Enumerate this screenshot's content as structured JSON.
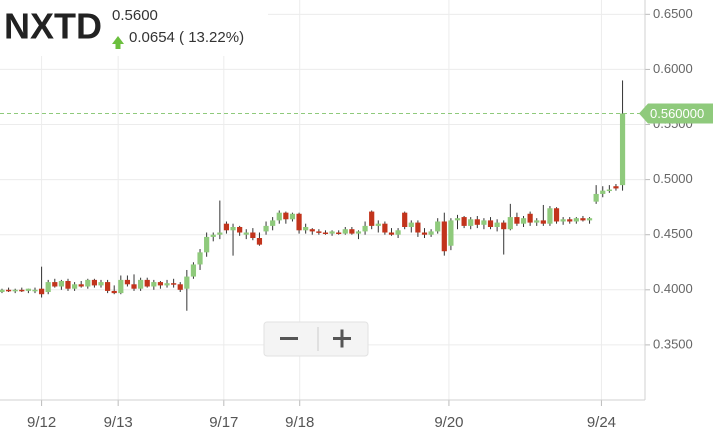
{
  "chart_data": {
    "type": "candlestick",
    "header": {
      "ticker": "NXTD",
      "price": "0.5600",
      "change": "0.0654 ( 13.22%)"
    },
    "last_price": {
      "value": 0.56,
      "label": "0.560000"
    },
    "up_color": "#8fca7c",
    "down_color": "#c2341c",
    "xlim": [
      -0.3,
      97.4
    ],
    "ylim": [
      0.3,
      0.663
    ],
    "xticks": [
      {
        "value": 6,
        "label": "9/12"
      },
      {
        "value": 17.6,
        "label": "9/13"
      },
      {
        "value": 33.6,
        "label": "9/17"
      },
      {
        "value": 45.1,
        "label": "9/18"
      },
      {
        "value": 67.7,
        "label": "9/20"
      },
      {
        "value": 90.8,
        "label": "9/24"
      }
    ],
    "yticks": [
      {
        "value": 0.35,
        "label": "0.3500"
      },
      {
        "value": 0.4,
        "label": "0.4000"
      },
      {
        "value": 0.45,
        "label": "0.4500"
      },
      {
        "value": 0.5,
        "label": "0.5000"
      },
      {
        "value": 0.55,
        "label": "0.5500"
      },
      {
        "value": 0.6,
        "label": "0.6000"
      },
      {
        "value": 0.65,
        "label": "0.6500"
      }
    ],
    "grid": true,
    "open": [
      0.398,
      0.4,
      0.399,
      0.4,
      0.399,
      0.399,
      0.401,
      0.398,
      0.407,
      0.403,
      0.408,
      0.401,
      0.405,
      0.403,
      0.409,
      0.404,
      0.407,
      0.399,
      0.397,
      0.409,
      0.405,
      0.401,
      0.409,
      0.403,
      0.407,
      0.404,
      0.406,
      0.405,
      0.401,
      0.412,
      0.423,
      0.434,
      0.448,
      0.45,
      0.46,
      0.454,
      0.457,
      0.45,
      0.452,
      0.447,
      0.453,
      0.458,
      0.463,
      0.47,
      0.464,
      0.469,
      0.454,
      0.455,
      0.453,
      0.452,
      0.451,
      0.452,
      0.451,
      0.455,
      0.451,
      0.453,
      0.471,
      0.458,
      0.46,
      0.452,
      0.45,
      0.47,
      0.457,
      0.461,
      0.452,
      0.45,
      0.453,
      0.462,
      0.44,
      0.463,
      0.466,
      0.458,
      0.464,
      0.459,
      0.463,
      0.457,
      0.461,
      0.455,
      0.466,
      0.46,
      0.469,
      0.461,
      0.463,
      0.46,
      0.474,
      0.462,
      0.464,
      0.462,
      0.465,
      0.463,
      0.48,
      0.487,
      0.49,
      0.494,
      0.495
    ],
    "high": [
      0.401,
      0.402,
      0.401,
      0.402,
      0.401,
      0.402,
      0.421,
      0.409,
      0.41,
      0.409,
      0.41,
      0.407,
      0.408,
      0.41,
      0.41,
      0.409,
      0.409,
      0.404,
      0.413,
      0.413,
      0.414,
      0.411,
      0.411,
      0.409,
      0.408,
      0.409,
      0.41,
      0.407,
      0.418,
      0.425,
      0.437,
      0.452,
      0.452,
      0.481,
      0.462,
      0.46,
      0.458,
      0.455,
      0.456,
      0.452,
      0.462,
      0.466,
      0.472,
      0.471,
      0.47,
      0.47,
      0.46,
      0.456,
      0.455,
      0.454,
      0.454,
      0.454,
      0.457,
      0.457,
      0.454,
      0.462,
      0.472,
      0.463,
      0.462,
      0.456,
      0.456,
      0.471,
      0.463,
      0.463,
      0.456,
      0.455,
      0.465,
      0.47,
      0.465,
      0.468,
      0.467,
      0.466,
      0.467,
      0.465,
      0.466,
      0.464,
      0.463,
      0.478,
      0.47,
      0.467,
      0.471,
      0.465,
      0.477,
      0.476,
      0.475,
      0.466,
      0.466,
      0.466,
      0.467,
      0.466,
      0.495,
      0.494,
      0.495,
      0.496,
      0.59
    ],
    "low": [
      0.397,
      0.398,
      0.397,
      0.398,
      0.397,
      0.397,
      0.393,
      0.396,
      0.402,
      0.4,
      0.399,
      0.399,
      0.402,
      0.401,
      0.402,
      0.402,
      0.397,
      0.396,
      0.396,
      0.403,
      0.399,
      0.399,
      0.402,
      0.4,
      0.401,
      0.402,
      0.402,
      0.398,
      0.381,
      0.41,
      0.418,
      0.43,
      0.444,
      0.446,
      0.451,
      0.431,
      0.449,
      0.446,
      0.445,
      0.44,
      0.45,
      0.454,
      0.46,
      0.46,
      0.462,
      0.451,
      0.451,
      0.45,
      0.45,
      0.45,
      0.449,
      0.45,
      0.45,
      0.45,
      0.446,
      0.45,
      0.455,
      0.452,
      0.45,
      0.449,
      0.447,
      0.455,
      0.452,
      0.448,
      0.447,
      0.448,
      0.451,
      0.431,
      0.436,
      0.455,
      0.456,
      0.455,
      0.456,
      0.455,
      0.455,
      0.453,
      0.432,
      0.454,
      0.458,
      0.457,
      0.458,
      0.458,
      0.458,
      0.458,
      0.46,
      0.459,
      0.46,
      0.46,
      0.462,
      0.46,
      0.478,
      0.484,
      0.488,
      0.49,
      0.49
    ],
    "close": [
      0.4,
      0.399,
      0.4,
      0.399,
      0.401,
      0.4,
      0.396,
      0.407,
      0.403,
      0.408,
      0.401,
      0.405,
      0.403,
      0.409,
      0.404,
      0.407,
      0.399,
      0.397,
      0.409,
      0.405,
      0.401,
      0.409,
      0.403,
      0.407,
      0.404,
      0.406,
      0.405,
      0.4,
      0.412,
      0.423,
      0.434,
      0.448,
      0.45,
      0.452,
      0.454,
      0.457,
      0.452,
      0.452,
      0.447,
      0.441,
      0.458,
      0.463,
      0.47,
      0.464,
      0.469,
      0.454,
      0.457,
      0.453,
      0.452,
      0.451,
      0.453,
      0.451,
      0.455,
      0.451,
      0.453,
      0.458,
      0.458,
      0.46,
      0.452,
      0.45,
      0.454,
      0.457,
      0.461,
      0.452,
      0.45,
      0.453,
      0.462,
      0.435,
      0.463,
      0.465,
      0.458,
      0.464,
      0.459,
      0.463,
      0.457,
      0.461,
      0.455,
      0.466,
      0.46,
      0.465,
      0.461,
      0.463,
      0.46,
      0.474,
      0.462,
      0.464,
      0.462,
      0.465,
      0.463,
      0.465,
      0.487,
      0.49,
      0.491,
      0.492,
      0.56
    ]
  }
}
